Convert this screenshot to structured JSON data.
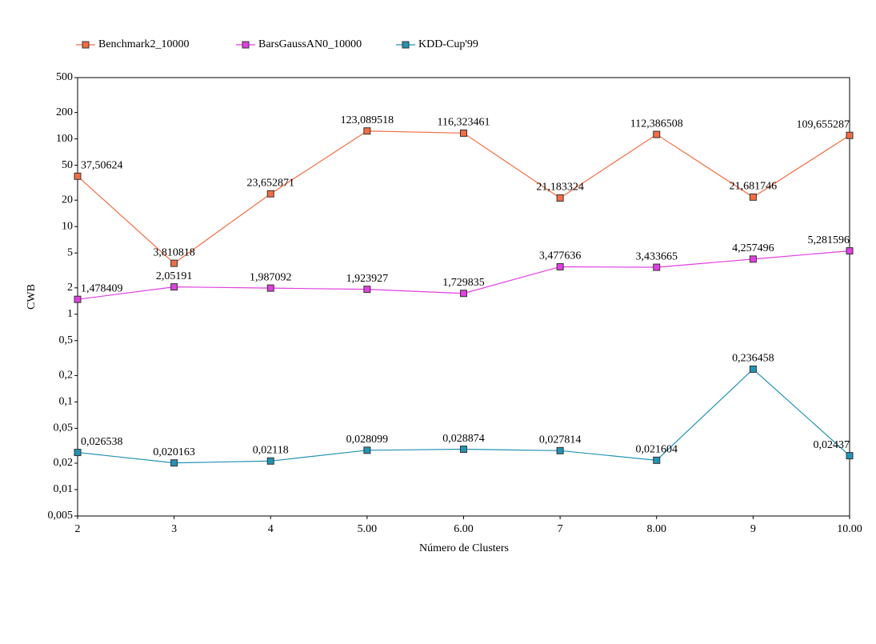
{
  "chart_data": {
    "type": "line",
    "x_label": "Número de Clusters",
    "y_label": "CWB",
    "categories": [
      "2",
      "3",
      "4",
      "5.00",
      "6.00",
      "7",
      "8.00",
      "9",
      "10.00"
    ],
    "log_y": true,
    "legend": "top-left",
    "ylim": [
      0.005,
      500
    ],
    "yticks": [
      500,
      200,
      100,
      50,
      20,
      10,
      5,
      2,
      1,
      {
        "value": 0.5,
        "label": "0,5"
      },
      {
        "value": 0.2,
        "label": "0,2"
      },
      {
        "value": 0.1,
        "label": "0,1"
      },
      {
        "value": 0.05,
        "label": "0,05"
      },
      {
        "value": 0.02,
        "label": "0,02"
      },
      {
        "value": 0.01,
        "label": "0,01"
      },
      {
        "value": 0.005,
        "label": "0,005"
      }
    ],
    "series": [
      {
        "name": "Benchmark2_10000",
        "color": "#f26d43",
        "values": [
          37.50624,
          3.810818,
          23.652871,
          123.089518,
          116.323461,
          21.183324,
          112.386508,
          21.681746,
          109.655287
        ],
        "value_labels": [
          "37,50624",
          "3,810818",
          "23,652871",
          "123,089518",
          "116,323461",
          "21,183324",
          "112,386508",
          "21,681746",
          "109,655287"
        ]
      },
      {
        "name": "BarsGaussAN0_10000",
        "color": "#e040e0",
        "values": [
          1.478409,
          2.05191,
          1.987092,
          1.923927,
          1.729835,
          3.477636,
          3.433665,
          4.257496,
          5.281596
        ],
        "value_labels": [
          "1,478409",
          "2,05191",
          "1,987092",
          "1,923927",
          "1,729835",
          "3,477636",
          "3,433665",
          "4,257496",
          "5,281596"
        ]
      },
      {
        "name": "KDD-Cup'99",
        "color": "#2393b5",
        "values": [
          0.026538,
          0.020163,
          0.02118,
          0.028099,
          0.028874,
          0.027814,
          0.021604,
          0.236458,
          0.02437
        ],
        "value_labels": [
          "0,026538",
          "0,020163",
          "0,02118",
          "0,028099",
          "0,028874",
          "0,027814",
          "0,021604",
          "0,236458",
          "0,02437"
        ]
      }
    ]
  }
}
